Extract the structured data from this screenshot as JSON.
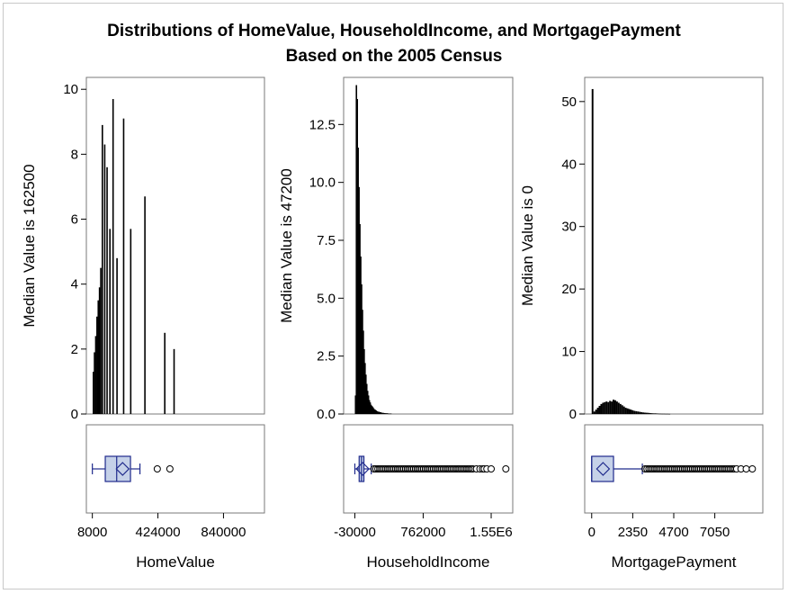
{
  "chart_data": {
    "type": "histogram-boxplot-panel",
    "title": "Distributions of HomeValue, HouseholdIncome, and MortgagePayment",
    "subtitle": "Based on the 2005 Census",
    "panels": [
      {
        "variable": "HomeValue",
        "xlabel": "HomeValue",
        "ylabel": "Median Value is 162500",
        "x_ticks": [
          "8000",
          "424000",
          "840000"
        ],
        "x_tick_values": [
          8000,
          424000,
          840000
        ],
        "xlim": [
          -30000,
          1100000
        ],
        "y_ticks": [
          "0",
          "2",
          "4",
          "6",
          "8",
          "10"
        ],
        "y_tick_values": [
          0,
          2,
          4,
          6,
          8,
          10
        ],
        "ylim": [
          0,
          10.2
        ],
        "bar_width": 6000,
        "bars": [
          {
            "x": 13000,
            "y": 1.3
          },
          {
            "x": 20000,
            "y": 1.9
          },
          {
            "x": 28000,
            "y": 2.4
          },
          {
            "x": 36000,
            "y": 3.0
          },
          {
            "x": 44000,
            "y": 3.5
          },
          {
            "x": 52000,
            "y": 3.9
          },
          {
            "x": 60000,
            "y": 4.5
          },
          {
            "x": 70000,
            "y": 8.9
          },
          {
            "x": 85000,
            "y": 8.3
          },
          {
            "x": 100000,
            "y": 7.6
          },
          {
            "x": 118000,
            "y": 5.7
          },
          {
            "x": 138000,
            "y": 9.7
          },
          {
            "x": 163000,
            "y": 4.8
          },
          {
            "x": 205000,
            "y": 9.1
          },
          {
            "x": 250000,
            "y": 5.7
          },
          {
            "x": 340000,
            "y": 6.7
          },
          {
            "x": 466000,
            "y": 2.5
          },
          {
            "x": 525000,
            "y": 2.0
          }
        ],
        "box": {
          "whisker_low": 8000,
          "q1": 90000,
          "median": 162500,
          "q3": 250000,
          "whisker_high": 310000,
          "mean": 200000,
          "outliers": [
            420000,
            500000
          ]
        }
      },
      {
        "variable": "HouseholdIncome",
        "xlabel": "HouseholdIncome",
        "ylabel": "Median Value is 47200",
        "x_ticks": [
          "-30000",
          "762000",
          "1.55E6"
        ],
        "x_tick_values": [
          -30000,
          762000,
          1550000
        ],
        "xlim": [
          -160000,
          1800000
        ],
        "y_ticks": [
          "0.0",
          "2.5",
          "5.0",
          "7.5",
          "10.0",
          "12.5"
        ],
        "y_tick_values": [
          0,
          2.5,
          5.0,
          7.5,
          10.0,
          12.5
        ],
        "ylim": [
          0,
          14.3
        ],
        "bar_width": 10000,
        "bars": [
          {
            "x": -25000,
            "y": 0.8
          },
          {
            "x": -15000,
            "y": 14.2
          },
          {
            "x": -5000,
            "y": 13.6
          },
          {
            "x": 5000,
            "y": 11.5
          },
          {
            "x": 15000,
            "y": 9.8
          },
          {
            "x": 25000,
            "y": 8.2
          },
          {
            "x": 35000,
            "y": 6.8
          },
          {
            "x": 45000,
            "y": 5.6
          },
          {
            "x": 55000,
            "y": 4.5
          },
          {
            "x": 65000,
            "y": 3.6
          },
          {
            "x": 75000,
            "y": 2.8
          },
          {
            "x": 85000,
            "y": 2.2
          },
          {
            "x": 95000,
            "y": 1.7
          },
          {
            "x": 105000,
            "y": 1.3
          },
          {
            "x": 115000,
            "y": 1.0
          },
          {
            "x": 125000,
            "y": 0.8
          },
          {
            "x": 135000,
            "y": 0.6
          },
          {
            "x": 145000,
            "y": 0.5
          },
          {
            "x": 155000,
            "y": 0.4
          },
          {
            "x": 165000,
            "y": 0.35
          },
          {
            "x": 175000,
            "y": 0.3
          },
          {
            "x": 185000,
            "y": 0.25
          },
          {
            "x": 195000,
            "y": 0.2
          },
          {
            "x": 205000,
            "y": 0.18
          },
          {
            "x": 215000,
            "y": 0.15
          },
          {
            "x": 225000,
            "y": 0.12
          },
          {
            "x": 235000,
            "y": 0.1
          },
          {
            "x": 245000,
            "y": 0.1
          },
          {
            "x": 255000,
            "y": 0.08
          },
          {
            "x": 265000,
            "y": 0.08
          },
          {
            "x": 275000,
            "y": 0.06
          },
          {
            "x": 285000,
            "y": 0.05
          },
          {
            "x": 295000,
            "y": 0.05
          },
          {
            "x": 305000,
            "y": 0.04
          },
          {
            "x": 315000,
            "y": 0.04
          },
          {
            "x": 325000,
            "y": 0.03
          },
          {
            "x": 335000,
            "y": 0.03
          },
          {
            "x": 345000,
            "y": 0.03
          },
          {
            "x": 355000,
            "y": 0.02
          },
          {
            "x": 365000,
            "y": 0.02
          },
          {
            "x": 375000,
            "y": 0.02
          },
          {
            "x": 385000,
            "y": 0.02
          }
        ],
        "box": {
          "whisker_low": -30000,
          "q1": 20000,
          "median": 47200,
          "q3": 75000,
          "whisker_high": 160000,
          "mean": 60000,
          "outlier_cloud": [
            160000,
            1350000
          ],
          "outliers": [
            1380000,
            1420000,
            1450000,
            1470000,
            1500000,
            1550000,
            1720000
          ]
        }
      },
      {
        "variable": "MortgagePayment",
        "xlabel": "MortgagePayment",
        "ylabel": "Median Value is 0",
        "x_ticks": [
          "0",
          "2350",
          "4700",
          "7050"
        ],
        "x_tick_values": [
          0,
          2350,
          4700,
          7050
        ],
        "xlim": [
          -400,
          9800
        ],
        "y_ticks": [
          "0",
          "10",
          "20",
          "30",
          "40",
          "50"
        ],
        "y_tick_values": [
          0,
          10,
          20,
          30,
          40,
          50
        ],
        "ylim": [
          0,
          53
        ],
        "bar_width": 100,
        "bars": [
          {
            "x": 50,
            "y": 52.0
          },
          {
            "x": 150,
            "y": 0.4
          },
          {
            "x": 250,
            "y": 0.7
          },
          {
            "x": 350,
            "y": 1.0
          },
          {
            "x": 450,
            "y": 1.3
          },
          {
            "x": 550,
            "y": 1.6
          },
          {
            "x": 650,
            "y": 1.8
          },
          {
            "x": 750,
            "y": 1.9
          },
          {
            "x": 850,
            "y": 2.0
          },
          {
            "x": 950,
            "y": 1.9
          },
          {
            "x": 1050,
            "y": 2.1
          },
          {
            "x": 1150,
            "y": 2.0
          },
          {
            "x": 1250,
            "y": 2.3
          },
          {
            "x": 1350,
            "y": 2.2
          },
          {
            "x": 1450,
            "y": 2.0
          },
          {
            "x": 1550,
            "y": 1.8
          },
          {
            "x": 1650,
            "y": 1.6
          },
          {
            "x": 1750,
            "y": 1.4
          },
          {
            "x": 1850,
            "y": 1.2
          },
          {
            "x": 1950,
            "y": 1.0
          },
          {
            "x": 2050,
            "y": 0.9
          },
          {
            "x": 2150,
            "y": 0.8
          },
          {
            "x": 2250,
            "y": 0.7
          },
          {
            "x": 2350,
            "y": 0.6
          },
          {
            "x": 2450,
            "y": 0.5
          },
          {
            "x": 2550,
            "y": 0.45
          },
          {
            "x": 2650,
            "y": 0.4
          },
          {
            "x": 2750,
            "y": 0.35
          },
          {
            "x": 2850,
            "y": 0.3
          },
          {
            "x": 2950,
            "y": 0.25
          },
          {
            "x": 3050,
            "y": 0.22
          },
          {
            "x": 3150,
            "y": 0.2
          },
          {
            "x": 3250,
            "y": 0.18
          },
          {
            "x": 3350,
            "y": 0.15
          },
          {
            "x": 3450,
            "y": 0.12
          },
          {
            "x": 3550,
            "y": 0.1
          },
          {
            "x": 3650,
            "y": 0.1
          },
          {
            "x": 3750,
            "y": 0.08
          },
          {
            "x": 3850,
            "y": 0.06
          },
          {
            "x": 3950,
            "y": 0.05
          },
          {
            "x": 4050,
            "y": 0.04
          },
          {
            "x": 4150,
            "y": 0.04
          },
          {
            "x": 4250,
            "y": 0.03
          },
          {
            "x": 4350,
            "y": 0.03
          },
          {
            "x": 4450,
            "y": 0.02
          }
        ],
        "box": {
          "whisker_low": 0,
          "q1": 0,
          "median": 0,
          "q3": 1250,
          "whisker_high": 2900,
          "mean": 650,
          "outlier_cloud": [
            2900,
            8200
          ],
          "outliers": [
            8300,
            8550,
            8850,
            9200
          ]
        }
      }
    ]
  }
}
